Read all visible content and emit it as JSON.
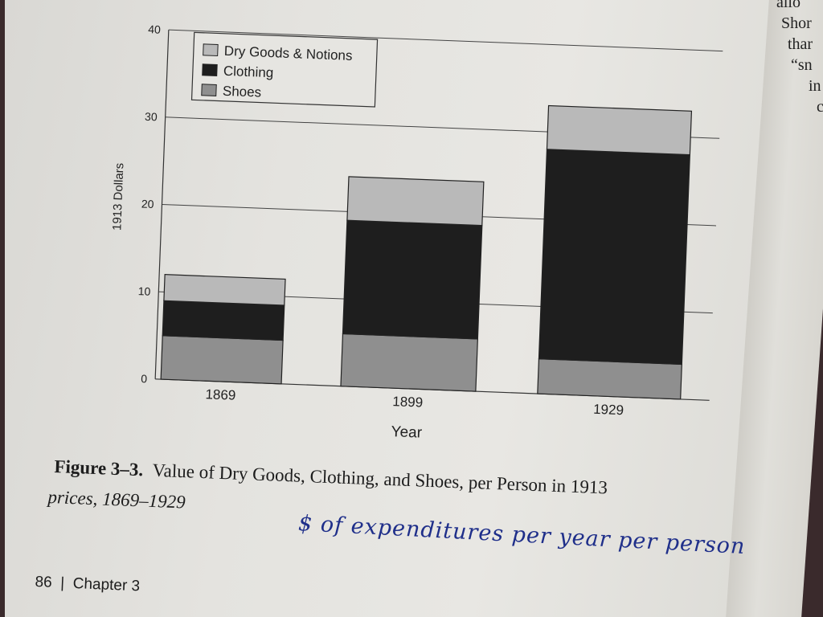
{
  "chart_data": {
    "type": "bar",
    "stacked": true,
    "categories": [
      "1869",
      "1899",
      "1929"
    ],
    "series": [
      {
        "name": "Shoes",
        "values": [
          5,
          6,
          4
        ]
      },
      {
        "name": "Clothing",
        "values": [
          4,
          13,
          24
        ]
      },
      {
        "name": "Dry Goods & Notions",
        "values": [
          3,
          5,
          5
        ]
      }
    ],
    "legend_order": [
      "Dry Goods & Notions",
      "Clothing",
      "Shoes"
    ],
    "xlabel": "Year",
    "ylabel": "1913 Dollars",
    "yticks": [
      "0",
      "10",
      "20",
      "30",
      "40"
    ],
    "ylim": [
      0,
      40
    ],
    "grid": true,
    "legend_position": "top-left",
    "colors": {
      "Dry Goods & Notions": "#b9b9b9",
      "Clothing": "#1e1e1e",
      "Shoes": "#8f8f8f"
    }
  },
  "caption": {
    "label": "Figure 3–3.",
    "text": "Value of Dry Goods, Clothing, and Shoes, per Person in 1913",
    "text2": "prices, 1869–1929"
  },
  "handwritten_note": "$ of expenditures per year per person",
  "footer": {
    "page_number": "86",
    "separator": "|",
    "chapter": "Chapter 3"
  },
  "side_page_fragments": [
    "allo",
    "Shor",
    "thar",
    "“sn",
    "in",
    "c"
  ]
}
